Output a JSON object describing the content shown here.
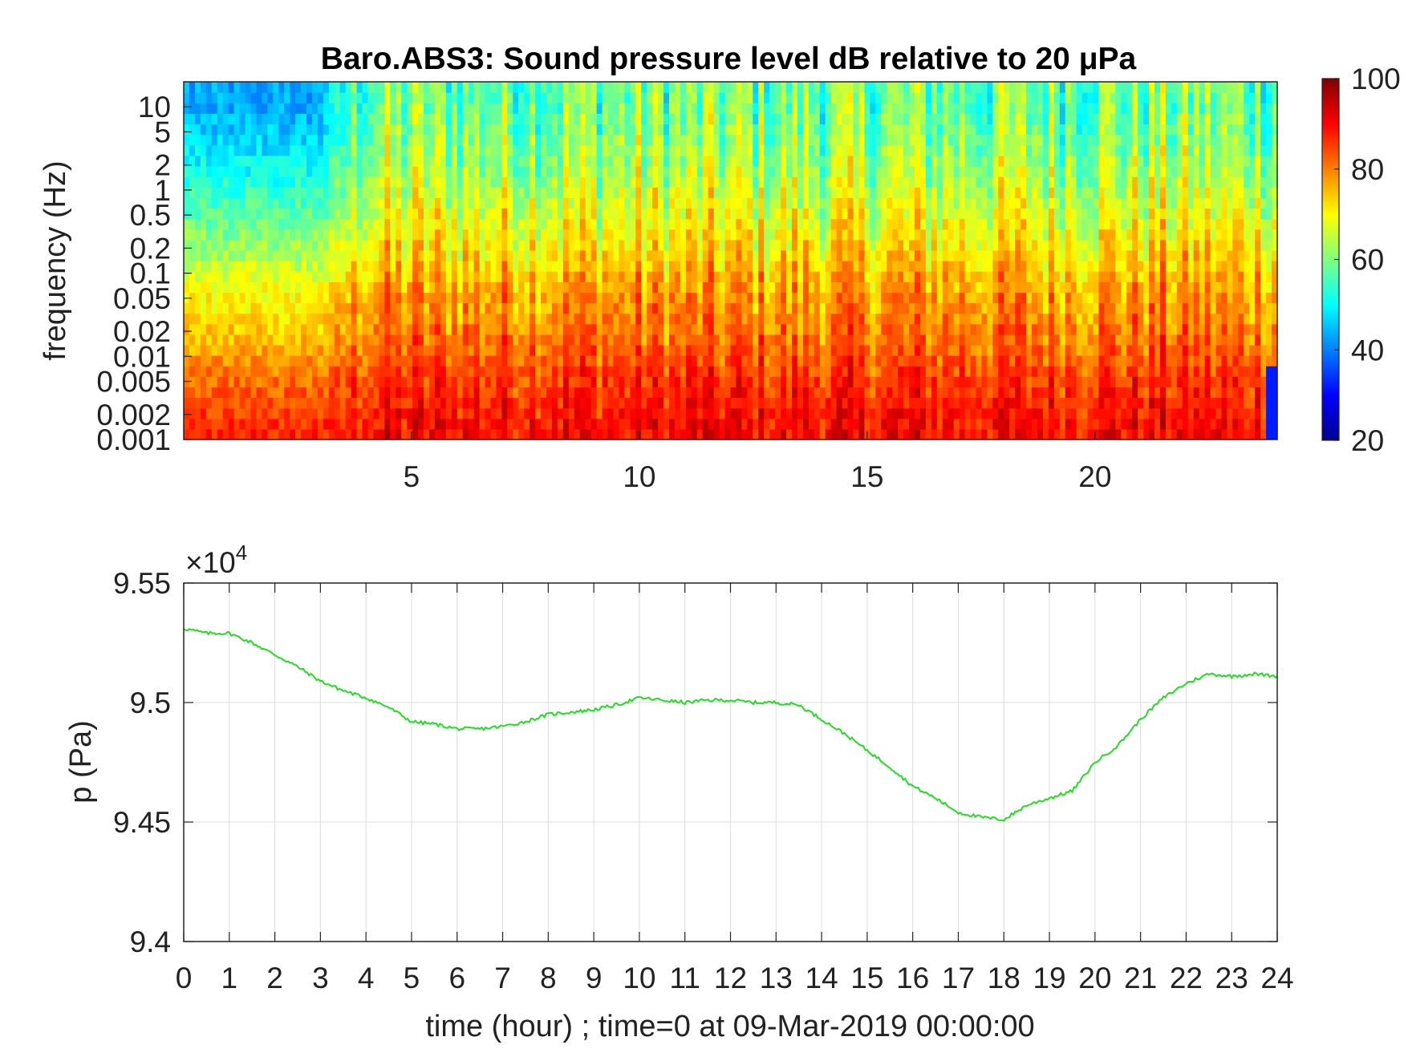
{
  "chart_data": [
    {
      "type": "heatmap",
      "title": "Baro.ABS3: Sound pressure level dB relative to 20 μPa",
      "ylabel": "frequency (Hz)",
      "xlabel": "",
      "x_ticks": [
        5,
        10,
        15,
        20
      ],
      "xlim": [
        0,
        24
      ],
      "y_scale": "log",
      "y_ticks": [
        "10",
        "5",
        "2",
        "1",
        "0.5",
        "0.2",
        "0.1",
        "0.05",
        "0.02",
        "0.01",
        "0.005",
        "0.002",
        "0.001"
      ],
      "ylim": [
        0.001,
        20
      ],
      "colormap": "jet",
      "colorbar": {
        "range": [
          20,
          100
        ],
        "ticks": [
          20,
          40,
          60,
          80,
          100
        ]
      },
      "level_profile_db": [
        [
          0.001,
          88
        ],
        [
          0.002,
          86
        ],
        [
          0.005,
          83
        ],
        [
          0.01,
          80
        ],
        [
          0.02,
          77
        ],
        [
          0.05,
          74
        ],
        [
          0.1,
          71
        ],
        [
          0.2,
          67
        ],
        [
          0.5,
          63
        ],
        [
          1,
          60
        ],
        [
          2,
          57
        ],
        [
          5,
          54
        ],
        [
          10,
          52
        ]
      ]
    },
    {
      "type": "line",
      "xlabel": "time (hour) ; time=0 at 09-Mar-2019 00:00:00",
      "ylabel": "p (Pa)",
      "y_exponent_label": "×10",
      "y_exponent": "4",
      "xlim": [
        0,
        24
      ],
      "ylim": [
        94000,
        95500
      ],
      "x_ticks": [
        0,
        1,
        2,
        3,
        4,
        5,
        6,
        7,
        8,
        9,
        10,
        11,
        12,
        13,
        14,
        15,
        16,
        17,
        18,
        19,
        20,
        21,
        22,
        23,
        24
      ],
      "y_ticks": [
        {
          "value": 94000,
          "label": "9.4"
        },
        {
          "value": 94500,
          "label": "9.45"
        },
        {
          "value": 95000,
          "label": "9.5"
        },
        {
          "value": 95500,
          "label": "9.55"
        }
      ],
      "grid": true,
      "series": [
        {
          "color": "#22dd22",
          "x": [
            0,
            0.5,
            1,
            1.5,
            2,
            2.5,
            3,
            3.5,
            4,
            4.5,
            5,
            5.5,
            6,
            6.5,
            7,
            7.5,
            8,
            8.5,
            9,
            9.5,
            10,
            10.5,
            11,
            11.5,
            12,
            12.5,
            13,
            13.5,
            14,
            14.5,
            15,
            15.5,
            16,
            16.5,
            17,
            17.5,
            18,
            18.5,
            19,
            19.5,
            20,
            20.5,
            21,
            21.5,
            22,
            22.5,
            23,
            23.5,
            24
          ],
          "y": [
            95310,
            95290,
            95290,
            95250,
            95200,
            95150,
            95090,
            95050,
            95020,
            94980,
            94920,
            94910,
            94890,
            94890,
            94900,
            94920,
            94950,
            94960,
            94970,
            94990,
            95020,
            95010,
            95000,
            95010,
            95010,
            95000,
            95000,
            94990,
            94930,
            94870,
            94800,
            94730,
            94650,
            94600,
            94540,
            94520,
            94510,
            94570,
            94600,
            94630,
            94750,
            94820,
            94930,
            95020,
            95080,
            95120,
            95110,
            95120,
            95110
          ]
        }
      ]
    }
  ]
}
